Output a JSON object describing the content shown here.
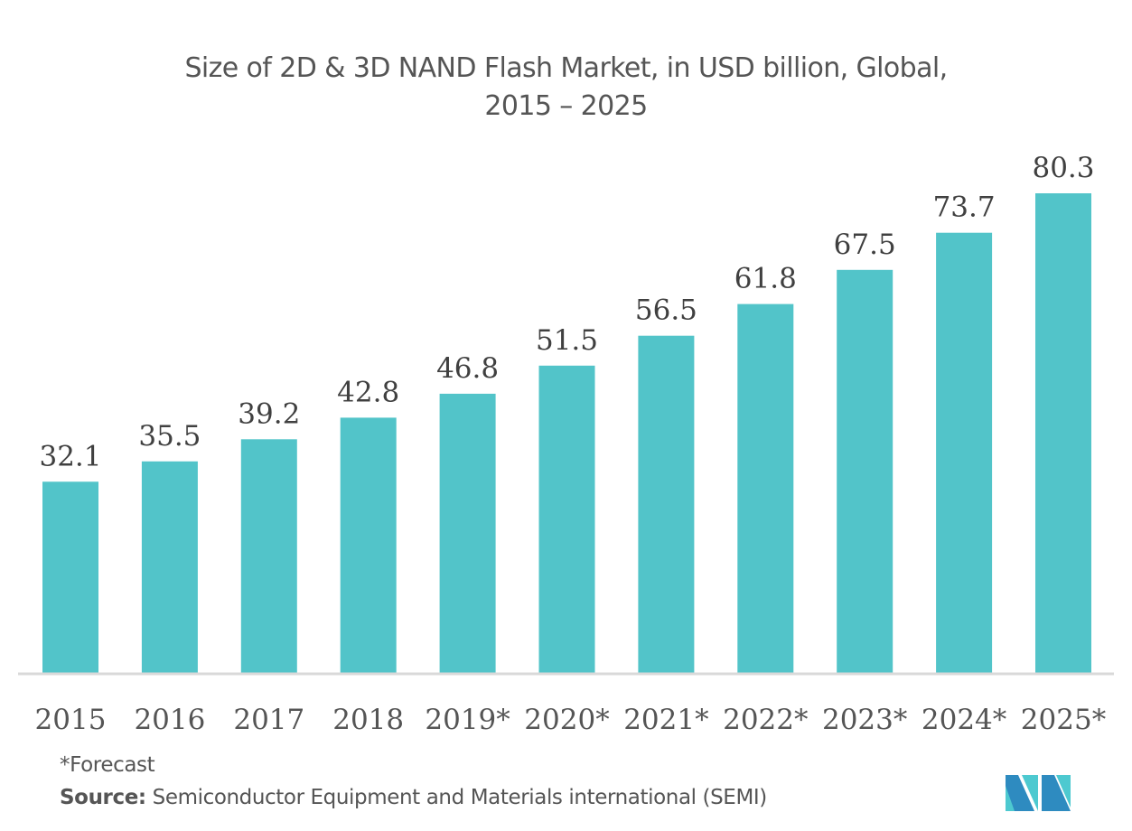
{
  "chart_data": {
    "type": "bar",
    "title": "Size of 2D & 3D NAND Flash Market, in USD billion, Global,",
    "subtitle": "2015 – 2025",
    "categories": [
      "2015",
      "2016",
      "2017",
      "2018",
      "2019*",
      "2020*",
      "2021*",
      "2022*",
      "2023*",
      "2024*",
      "2025*"
    ],
    "values": [
      32.1,
      35.5,
      39.2,
      42.8,
      46.8,
      51.5,
      56.5,
      61.8,
      67.5,
      73.7,
      80.3
    ],
    "value_labels": [
      "32.1",
      "35.5",
      "39.2",
      "42.8",
      "46.8",
      "51.5",
      "56.5",
      "61.8",
      "67.5",
      "73.7",
      "80.3"
    ],
    "xlabel": "",
    "ylabel": "",
    "ylim": [
      0,
      80.3
    ],
    "grid": false,
    "legend": "none",
    "bar_color": "#52C4C9",
    "axis_color": "#D9D9D9"
  },
  "footer": {
    "forecast_note": "*Forecast",
    "source_label": "Source:",
    "source_text": " Semiconductor Equipment and Materials international (SEMI)"
  },
  "logo": {
    "icon": "mordor-intelligence-logo",
    "colors": [
      "#2E8BC0",
      "#4DC9D0"
    ]
  }
}
